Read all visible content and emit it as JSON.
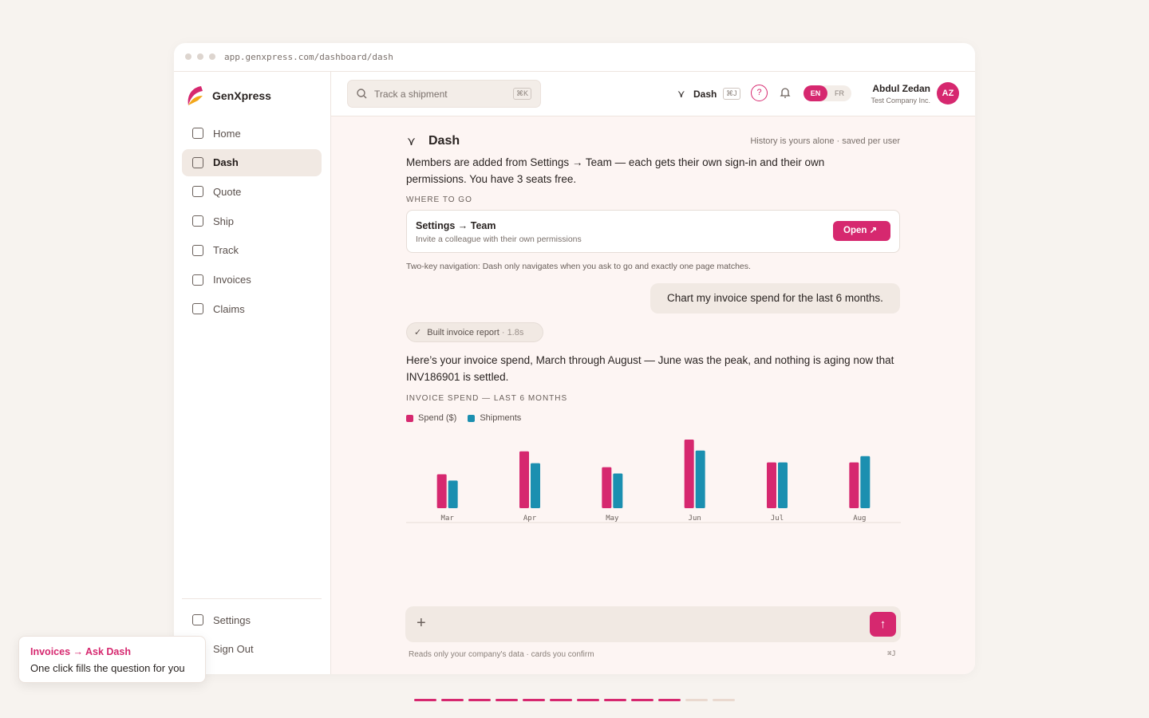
{
  "browser": {
    "url": "app.genxpress.com/dashboard/dash"
  },
  "sidebar": {
    "brand": "GenXpress",
    "nav": [
      "Home",
      "Dash",
      "Quote",
      "Ship",
      "Track",
      "Invoices",
      "Claims"
    ],
    "active": "Dash",
    "bottom_nav": [
      "Settings",
      "Sign Out"
    ]
  },
  "topbar": {
    "search_placeholder": "Track a shipment",
    "search_shortcut": "⌘K",
    "dash_label": "Dash",
    "dash_shortcut": "⌘J",
    "help": "?",
    "languages": [
      "EN",
      "FR"
    ],
    "user_name": "Abdul Zedan",
    "user_company": "Test Company Inc.",
    "user_initials": "AZ"
  },
  "conversation": {
    "title": "Dash",
    "history_note": "History is yours alone · saved per user",
    "message_text": "Members are added from Settings → Team — each gets their own sign-in and their own permissions. You have 3 seats free.",
    "where_to_go_label": "WHERE TO GO",
    "link_card": {
      "title": "Settings → Team",
      "subtitle": "Invite a colleague with their own permissions",
      "button": "Open"
    },
    "nav_note": "Two-key navigation: Dash only navigates when you ask to go and exactly one page matches.",
    "user_message": "Chart my invoice spend for the last 6 months.",
    "tool_status": "Built invoice report",
    "tool_time": "· 1.8s",
    "reply": "Here’s your invoice spend, March through August — June was the peak, and nothing is aging now that INV186901 is settled.",
    "chart_data": {
      "type": "bar",
      "title": "INVOICE SPEND — LAST 6 MONTHS",
      "categories": [
        "Mar",
        "Apr",
        "May",
        "Jun",
        "Jul",
        "Aug"
      ],
      "series": [
        {
          "name": "Spend ($)",
          "color": "#d6286f",
          "values": [
            43,
            72,
            52,
            87,
            58,
            58
          ]
        },
        {
          "name": "Shipments",
          "color": "#1b8fb0",
          "values": [
            35,
            57,
            44,
            73,
            58,
            66
          ]
        }
      ],
      "ylim": [
        0,
        90
      ]
    }
  },
  "composer": {
    "note": "Reads only your company's data · cards you confirm",
    "shortcut": "⌘J"
  },
  "tooltip": {
    "title": "Invoices → Ask Dash",
    "text": "One click fills the question for you"
  },
  "progress": {
    "total": 12,
    "done": 10
  }
}
